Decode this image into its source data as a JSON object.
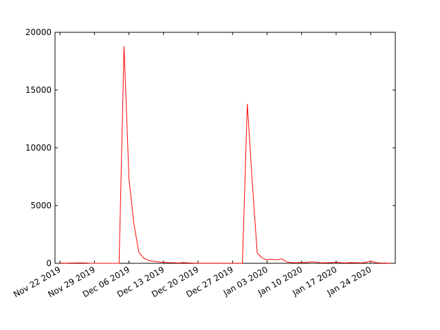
{
  "chart_data": {
    "type": "line",
    "x": [
      "2019-11-22",
      "2019-11-23",
      "2019-11-24",
      "2019-11-25",
      "2019-11-26",
      "2019-11-27",
      "2019-11-28",
      "2019-11-29",
      "2019-11-30",
      "2019-12-01",
      "2019-12-02",
      "2019-12-03",
      "2019-12-04",
      "2019-12-05",
      "2019-12-06",
      "2019-12-07",
      "2019-12-08",
      "2019-12-09",
      "2019-12-10",
      "2019-12-11",
      "2019-12-12",
      "2019-12-13",
      "2019-12-14",
      "2019-12-15",
      "2019-12-16",
      "2019-12-17",
      "2019-12-18",
      "2019-12-19",
      "2019-12-20",
      "2019-12-21",
      "2019-12-22",
      "2019-12-23",
      "2019-12-24",
      "2019-12-25",
      "2019-12-26",
      "2019-12-27",
      "2019-12-28",
      "2019-12-29",
      "2019-12-30",
      "2019-12-31",
      "2020-01-01",
      "2020-01-02",
      "2020-01-03",
      "2020-01-04",
      "2020-01-05",
      "2020-01-06",
      "2020-01-07",
      "2020-01-08",
      "2020-01-09",
      "2020-01-10",
      "2020-01-11",
      "2020-01-12",
      "2020-01-13",
      "2020-01-14",
      "2020-01-15",
      "2020-01-16",
      "2020-01-17",
      "2020-01-18",
      "2020-01-19",
      "2020-01-20",
      "2020-01-21",
      "2020-01-22",
      "2020-01-23",
      "2020-01-24",
      "2020-01-25",
      "2020-01-26",
      "2020-01-27",
      "2020-01-28"
    ],
    "series": [
      {
        "color": "#ff0000",
        "values": [
          20,
          10,
          20,
          30,
          40,
          30,
          10,
          0,
          0,
          0,
          0,
          0,
          0,
          18800,
          7300,
          3400,
          950,
          450,
          250,
          180,
          120,
          80,
          60,
          50,
          30,
          60,
          40,
          20,
          10,
          10,
          5,
          5,
          5,
          5,
          5,
          5,
          5,
          0,
          13800,
          7000,
          900,
          450,
          300,
          350,
          300,
          380,
          120,
          60,
          50,
          80,
          60,
          130,
          100,
          40,
          50,
          60,
          100,
          50,
          40,
          60,
          50,
          40,
          80,
          200,
          60,
          30,
          20,
          10
        ]
      }
    ],
    "xlim": [
      "2019-11-21",
      "2020-01-29"
    ],
    "xticks": [
      {
        "value": "2019-11-22",
        "label": "Nov 22 2019"
      },
      {
        "value": "2019-11-29",
        "label": "Nov 29 2019"
      },
      {
        "value": "2019-12-06",
        "label": "Dec 06 2019"
      },
      {
        "value": "2019-12-13",
        "label": "Dec 13 2019"
      },
      {
        "value": "2019-12-20",
        "label": "Dec 20 2019"
      },
      {
        "value": "2019-12-27",
        "label": "Dec 27 2019"
      },
      {
        "value": "2020-01-03",
        "label": "Jan 03 2020"
      },
      {
        "value": "2020-01-10",
        "label": "Jan 10 2020"
      },
      {
        "value": "2020-01-17",
        "label": "Jan 17 2020"
      },
      {
        "value": "2020-01-24",
        "label": "Jan 24 2020"
      }
    ],
    "ylim": [
      0,
      20000
    ],
    "yticks": [
      0,
      5000,
      10000,
      15000,
      20000
    ],
    "grid": false
  }
}
